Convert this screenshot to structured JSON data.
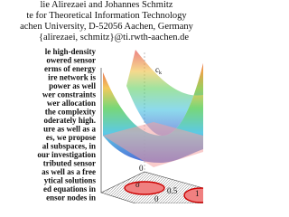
{
  "header": {
    "authors": "lie Alirezaei and Johannes Schmitz",
    "institute": "te for Theoretical Information Technology",
    "address": "achen University, D-52056 Aachen, Germany",
    "email": "{alirezaei, schmitz}@ti.rwth-aachen.de"
  },
  "abstract": {
    "lines": [
      "le high-density",
      "owered sensor",
      "erms of energy",
      "ire network is",
      "power as well",
      "wer constraints",
      "wer allocation",
      "the complexity",
      "oderately high.",
      "ure as well as a",
      "es, we propose",
      "al subspaces, in",
      "our investigation",
      "tributed sensor",
      "as well as a free",
      "ytical solutions",
      "ed equations in",
      "ensor nodes in"
    ]
  },
  "figure": {
    "z_label": "c",
    "z_label_sub": "k",
    "y_label": "σ",
    "y_tick": "0",
    "x_ticks": [
      "0",
      "0.5",
      "1"
    ]
  }
}
